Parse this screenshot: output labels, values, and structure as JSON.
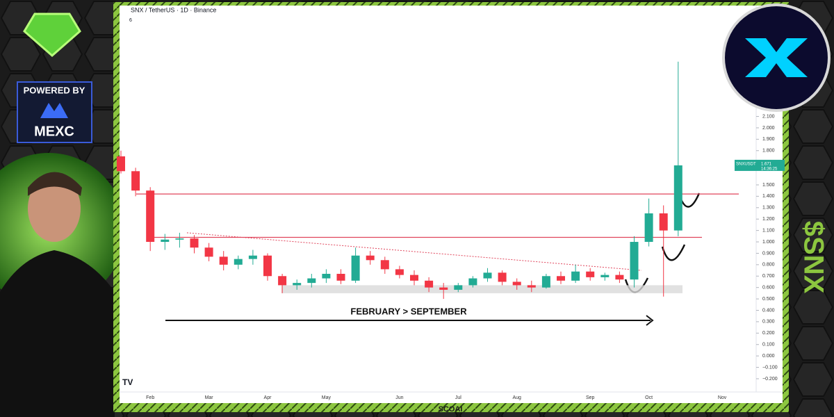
{
  "chart_data": {
    "type": "candlestick",
    "header": "SNX / TetherUS · 1D · Binance",
    "indicator_count": "6",
    "symbol": "SNXUSDT",
    "last_price": 1.671,
    "countdown": "14:36:25",
    "annotation": "FEBRUARY > SEPTEMBER",
    "branding": {
      "powered_by": "POWERED BY",
      "exchange": "MEXC",
      "ticker": "$SNX",
      "footer": "SCOAI"
    },
    "categories": [
      null,
      null,
      "Feb",
      null,
      null,
      null,
      "Mar",
      null,
      null,
      null,
      "Apr",
      null,
      null,
      null,
      "May",
      null,
      null,
      null,
      null,
      "Jun",
      null,
      null,
      null,
      "Jul",
      null,
      null,
      null,
      "Aug",
      null,
      null,
      null,
      null,
      "Sep",
      null,
      null,
      null,
      "Oct",
      null,
      null,
      null,
      null,
      "Nov"
    ],
    "open": [
      1.75,
      1.62,
      1.45,
      1.0,
      1.02,
      1.03,
      0.95,
      0.87,
      0.8,
      0.85,
      0.88,
      0.7,
      0.62,
      0.64,
      0.68,
      0.72,
      0.66,
      0.88,
      0.84,
      0.76,
      0.71,
      0.66,
      0.6,
      0.58,
      0.62,
      0.68,
      0.73,
      0.65,
      0.62,
      0.6,
      0.7,
      0.66,
      0.74,
      0.69,
      0.71,
      0.67,
      1.0,
      1.25,
      1.1,
      null,
      null,
      null
    ],
    "high": [
      1.8,
      1.65,
      1.48,
      1.07,
      1.08,
      1.06,
      0.99,
      0.92,
      0.88,
      0.93,
      0.9,
      0.72,
      0.67,
      0.72,
      0.76,
      0.76,
      0.95,
      0.92,
      0.87,
      0.79,
      0.75,
      0.69,
      0.64,
      0.64,
      0.7,
      0.77,
      0.75,
      0.68,
      0.66,
      0.72,
      0.74,
      0.8,
      0.77,
      0.73,
      0.74,
      1.05,
      1.38,
      1.32,
      2.58,
      null,
      null,
      null
    ],
    "low": [
      1.6,
      1.4,
      0.92,
      0.93,
      0.95,
      0.9,
      0.83,
      0.75,
      0.76,
      0.8,
      0.66,
      0.55,
      0.58,
      0.6,
      0.64,
      0.63,
      0.64,
      0.8,
      0.72,
      0.68,
      0.62,
      0.56,
      0.5,
      0.56,
      0.6,
      0.65,
      0.62,
      0.58,
      0.56,
      0.59,
      0.63,
      0.64,
      0.66,
      0.66,
      0.64,
      0.6,
      0.96,
      0.52,
      1.05,
      null,
      null,
      null
    ],
    "close": [
      1.62,
      1.45,
      1.0,
      1.02,
      1.03,
      0.95,
      0.87,
      0.8,
      0.85,
      0.88,
      0.7,
      0.62,
      0.64,
      0.68,
      0.72,
      0.66,
      0.88,
      0.84,
      0.76,
      0.71,
      0.66,
      0.6,
      0.58,
      0.62,
      0.68,
      0.73,
      0.65,
      0.62,
      0.6,
      0.7,
      0.66,
      0.74,
      0.69,
      0.71,
      0.67,
      1.0,
      1.25,
      1.1,
      1.671,
      null,
      null,
      null
    ],
    "up_color": "#22ab94",
    "down_color": "#f23645",
    "levels": [
      1.42,
      1.04
    ],
    "level_color": "#e0435a",
    "support_zone": [
      0.55,
      0.62
    ],
    "trendline": [
      1.08,
      0.75
    ],
    "ylim": [
      -0.31,
      3.06
    ],
    "yticks": [
      {
        "value": -0.2,
        "label": "−0.200"
      },
      {
        "value": -0.1,
        "label": "−0.100"
      },
      {
        "value": 0,
        "label": "0.000"
      },
      {
        "value": 0.1,
        "label": "0.100"
      },
      {
        "value": 0.2,
        "label": "0.200"
      },
      {
        "value": 0.3,
        "label": "0.300"
      },
      {
        "value": 0.4,
        "label": "0.400"
      },
      {
        "value": 0.5,
        "label": "0.500"
      },
      {
        "value": 0.6,
        "label": "0.600"
      },
      {
        "value": 0.7,
        "label": "0.700"
      },
      {
        "value": 0.8,
        "label": "0.800"
      },
      {
        "value": 0.9,
        "label": "0.900"
      },
      {
        "value": 1.0,
        "label": "1.000"
      },
      {
        "value": 1.1,
        "label": "1.100"
      },
      {
        "value": 1.2,
        "label": "1.200"
      },
      {
        "value": 1.3,
        "label": "1.300"
      },
      {
        "value": 1.4,
        "label": "1.400"
      },
      {
        "value": 1.5,
        "label": "1.500"
      },
      {
        "value": 1.8,
        "label": "1.800"
      },
      {
        "value": 1.9,
        "label": "1.900"
      },
      {
        "value": 2.0,
        "label": "2.000"
      },
      {
        "value": 2.1,
        "label": "2.100"
      }
    ],
    "grid": false
  }
}
